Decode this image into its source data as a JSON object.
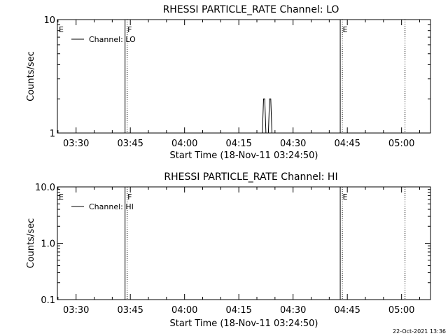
{
  "footer": {
    "timestamp": "22-Oct-2021 13:36"
  },
  "chart_data": [
    {
      "type": "line",
      "title": "RHESSI PARTICLE_RATE Channel: LO",
      "xlabel": "Start Time (18-Nov-11 03:24:50)",
      "ylabel": "Counts/sec",
      "yscale": "log",
      "ylim": [
        1,
        10
      ],
      "xlim": [
        "03:24:50",
        "05:08:00"
      ],
      "xticks": [
        "03:30",
        "03:45",
        "04:00",
        "04:15",
        "04:30",
        "04:45",
        "05:00"
      ],
      "yticks": [
        "1",
        "10"
      ],
      "legend": {
        "label": "Channel: LO",
        "position": "top-left"
      },
      "markers": [
        {
          "label": "E",
          "time": "03:24:50",
          "style": "solid"
        },
        {
          "label": "F",
          "time": "03:43:50",
          "style": "dotted"
        },
        {
          "label": "E",
          "time": "04:43:20",
          "style": "dotted"
        },
        {
          "label": "",
          "time": "05:00:40",
          "style": "dotted"
        }
      ],
      "series": [
        {
          "x": [
            "04:21:30",
            "04:21:50",
            "04:22:10",
            "04:22:30",
            "04:23:10",
            "04:23:30",
            "04:23:50",
            "04:24:10"
          ],
          "y": [
            1,
            2,
            2,
            1,
            1,
            2,
            2,
            1
          ]
        }
      ]
    },
    {
      "type": "line",
      "title": "RHESSI PARTICLE_RATE Channel: HI",
      "xlabel": "Start Time (18-Nov-11 03:24:50)",
      "ylabel": "Counts/sec",
      "yscale": "log",
      "ylim": [
        0.1,
        10
      ],
      "xlim": [
        "03:24:50",
        "05:08:00"
      ],
      "xticks": [
        "03:30",
        "03:45",
        "04:00",
        "04:15",
        "04:30",
        "04:45",
        "05:00"
      ],
      "yticks": [
        "0.1",
        "1.0",
        "10.0"
      ],
      "legend": {
        "label": "Channel: HI",
        "position": "top-left"
      },
      "markers": [
        {
          "label": "E",
          "time": "03:24:50",
          "style": "solid"
        },
        {
          "label": "F",
          "time": "03:43:50",
          "style": "dotted"
        },
        {
          "label": "E",
          "time": "04:43:20",
          "style": "dotted"
        },
        {
          "label": "",
          "time": "05:00:40",
          "style": "dotted"
        }
      ],
      "series": [
        {
          "x": [],
          "y": []
        }
      ]
    }
  ]
}
